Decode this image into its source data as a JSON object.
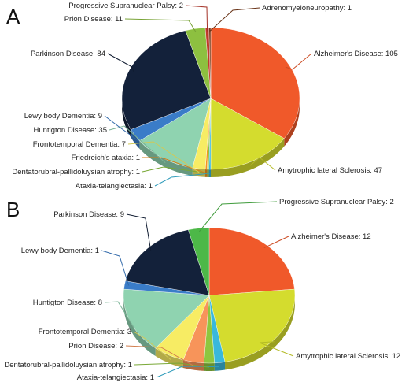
{
  "chart_data": [
    {
      "type": "pie",
      "panel_label": "A",
      "slices": [
        {
          "label": "Alzheimer's Disease",
          "value": 105,
          "color": "#f0592a"
        },
        {
          "label": "Amytrophic lateral Sclerosis",
          "value": 47,
          "color": "#d4dc2e"
        },
        {
          "label": "Ataxia-telangiectasia",
          "value": 1,
          "color": "#39b8dc"
        },
        {
          "label": "Dentatorubral-pallidoluysian atrophy",
          "value": 1,
          "color": "#8ec63f"
        },
        {
          "label": "Friedreich's ataxia",
          "value": 1,
          "color": "#f7941d"
        },
        {
          "label": "Frontotemporal Dementia",
          "value": 7,
          "color": "#f7ec64"
        },
        {
          "label": "Huntigton Disease",
          "value": 35,
          "color": "#8fd3b0"
        },
        {
          "label": "Lewy body Dementia",
          "value": 9,
          "color": "#3a7cc8"
        },
        {
          "label": "Parkinson Disease",
          "value": 84,
          "color": "#13213a"
        },
        {
          "label": "Prion Disease",
          "value": 11,
          "color": "#8dc040"
        },
        {
          "label": "Progressive Supranuclear Palsy",
          "value": 2,
          "color": "#c0392b"
        },
        {
          "label": "Adrenomyeloneuropathy",
          "value": 1,
          "color": "#7a3b1a"
        }
      ]
    },
    {
      "type": "pie",
      "panel_label": "B",
      "slices": [
        {
          "label": "Alzheimer's Disease",
          "value": 12,
          "color": "#f0592a"
        },
        {
          "label": "Amytrophic lateral Sclerosis",
          "value": 12,
          "color": "#d4dc2e"
        },
        {
          "label": "Ataxia-telangiectasia",
          "value": 1,
          "color": "#39b8dc"
        },
        {
          "label": "Dentatorubral-pallidoluysian atrophy",
          "value": 1,
          "color": "#8ec63f"
        },
        {
          "label": "Prion Disease",
          "value": 2,
          "color": "#f7945a"
        },
        {
          "label": "Frontotemporal Dementia",
          "value": 3,
          "color": "#f7ec64"
        },
        {
          "label": "Huntigton Disease",
          "value": 8,
          "color": "#8fd3b0"
        },
        {
          "label": "Lewy body Dementia",
          "value": 1,
          "color": "#3a7cc8"
        },
        {
          "label": "Parkinson Disease",
          "value": 9,
          "color": "#13213a"
        },
        {
          "label": "Progressive Supranuclear Palsy",
          "value": 2,
          "color": "#4db848"
        }
      ]
    }
  ]
}
